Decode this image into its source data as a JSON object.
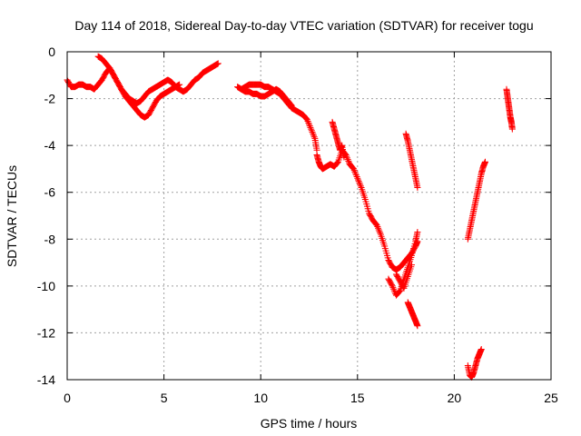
{
  "chart_data": {
    "type": "scatter",
    "title": "Day 114 of 2018, Sidereal Day-to-day VTEC variation (SDTVAR) for receiver togu",
    "xlabel": "GPS time / hours",
    "ylabel": "SDTVAR / TECUs",
    "xlim": [
      0,
      25
    ],
    "ylim": [
      -14,
      0
    ],
    "xticks": [
      "0",
      "5",
      "10",
      "15",
      "20",
      "25"
    ],
    "yticks": [
      "0",
      "-2",
      "-4",
      "-6",
      "-8",
      "-10",
      "-12",
      "-14"
    ],
    "grid": true,
    "marker": "plus",
    "color": "#ff0000",
    "series": [
      {
        "x": [
          0.0,
          0.2,
          0.4,
          0.6,
          0.8,
          1.0,
          1.2,
          1.4,
          1.6,
          1.8,
          2.0,
          2.2,
          2.4,
          2.6,
          2.8,
          3.0,
          3.2,
          3.4,
          3.6,
          3.8,
          4.0,
          4.2,
          4.4,
          4.6,
          4.8,
          5.0,
          5.2,
          5.4,
          5.6,
          5.8
        ],
        "y": [
          -1.2,
          -1.5,
          -1.5,
          -1.4,
          -1.4,
          -1.5,
          -1.5,
          -1.6,
          -1.4,
          -1.2,
          -0.9,
          -0.7,
          -1.0,
          -1.3,
          -1.6,
          -1.9,
          -2.1,
          -2.3,
          -2.5,
          -2.7,
          -2.8,
          -2.7,
          -2.4,
          -2.1,
          -1.9,
          -1.8,
          -1.7,
          -1.6,
          -1.5,
          -1.4
        ]
      },
      {
        "x": [
          1.6,
          1.8,
          2.0,
          2.2,
          2.4,
          2.6,
          2.8,
          3.0,
          3.2,
          3.4,
          3.6,
          3.8,
          4.0,
          4.2,
          4.4,
          4.6,
          4.8,
          5.0,
          5.2,
          5.4,
          5.6,
          5.8,
          6.0,
          6.2,
          6.4,
          6.6,
          6.8,
          7.0,
          7.2,
          7.4,
          7.6,
          7.8
        ],
        "y": [
          -0.2,
          -0.3,
          -0.5,
          -0.7,
          -1.0,
          -1.3,
          -1.6,
          -1.8,
          -2.0,
          -2.1,
          -2.2,
          -2.1,
          -1.9,
          -1.7,
          -1.6,
          -1.5,
          -1.4,
          -1.3,
          -1.2,
          -1.3,
          -1.5,
          -1.6,
          -1.7,
          -1.6,
          -1.4,
          -1.2,
          -1.1,
          -0.9,
          -0.8,
          -0.7,
          -0.6,
          -0.5
        ]
      },
      {
        "x": [
          8.8,
          9.0,
          9.2,
          9.4,
          9.6,
          9.8,
          10.0,
          10.2,
          10.4,
          10.6,
          10.8,
          11.0,
          11.2,
          11.4,
          11.6,
          11.8,
          12.0,
          12.2,
          12.4,
          12.6,
          12.8,
          12.9
        ],
        "y": [
          -1.5,
          -1.6,
          -1.5,
          -1.4,
          -1.4,
          -1.4,
          -1.4,
          -1.5,
          -1.5,
          -1.6,
          -1.7,
          -1.8,
          -2.0,
          -2.2,
          -2.4,
          -2.5,
          -2.6,
          -2.7,
          -2.9,
          -3.3,
          -3.7,
          -4.2
        ]
      },
      {
        "x": [
          9.0,
          9.2,
          9.4,
          9.6,
          9.8,
          10.0,
          10.2,
          10.4,
          10.6,
          10.8,
          11.0,
          11.2,
          11.4,
          11.6
        ],
        "y": [
          -1.6,
          -1.7,
          -1.7,
          -1.8,
          -1.8,
          -1.9,
          -1.9,
          -1.8,
          -1.7,
          -1.6,
          -1.7,
          -1.9,
          -2.1,
          -2.3
        ]
      },
      {
        "x": [
          12.9,
          13.0,
          13.1,
          13.2,
          13.4,
          13.6,
          13.8,
          14.0,
          14.2,
          14.4,
          14.6
        ],
        "y": [
          -4.4,
          -4.7,
          -4.9,
          -5.0,
          -4.9,
          -4.8,
          -4.9,
          -4.7,
          -4.2,
          -4.4,
          -4.8
        ]
      },
      {
        "x": [
          13.7,
          13.8,
          13.9,
          14.0,
          14.1,
          14.2,
          14.3
        ],
        "y": [
          -3.0,
          -3.3,
          -3.6,
          -3.9,
          -4.2,
          -4.0,
          -4.5
        ]
      },
      {
        "x": [
          14.6,
          14.8,
          15.0,
          15.2,
          15.4,
          15.6,
          15.8,
          16.0,
          16.2,
          16.4,
          16.6,
          16.8,
          17.0,
          17.2,
          17.4,
          17.6,
          17.8,
          18.0,
          18.1
        ],
        "y": [
          -4.8,
          -5.0,
          -5.4,
          -5.8,
          -6.3,
          -6.9,
          -7.2,
          -7.4,
          -7.8,
          -8.3,
          -8.9,
          -9.2,
          -9.3,
          -9.2,
          -9.0,
          -8.8,
          -8.6,
          -8.3,
          -8.1
        ]
      },
      {
        "x": [
          16.6,
          16.8,
          17.0,
          17.2,
          17.4,
          17.6,
          17.8,
          18.0,
          18.1
        ],
        "y": [
          -9.7,
          -10.0,
          -10.4,
          -10.2,
          -9.7,
          -9.2,
          -8.7,
          -8.1,
          -7.7
        ]
      },
      {
        "x": [
          17.0,
          17.2,
          17.4,
          17.6,
          17.8
        ],
        "y": [
          -9.5,
          -9.8,
          -10.1,
          -9.6,
          -9.1
        ]
      },
      {
        "x": [
          17.5,
          17.6,
          17.7,
          17.8,
          17.9,
          18.0,
          18.1
        ],
        "y": [
          -3.5,
          -3.8,
          -4.2,
          -4.6,
          -5.0,
          -5.4,
          -5.8
        ]
      },
      {
        "x": [
          17.6,
          17.7,
          17.8,
          17.9,
          18.0,
          18.1
        ],
        "y": [
          -10.7,
          -10.9,
          -11.1,
          -11.3,
          -11.5,
          -11.7
        ]
      },
      {
        "x": [
          20.7,
          20.8,
          20.9,
          21.0,
          21.1,
          21.2,
          21.3,
          21.4,
          21.5,
          21.6
        ],
        "y": [
          -8.0,
          -7.6,
          -7.2,
          -6.8,
          -6.4,
          -6.0,
          -5.6,
          -5.2,
          -4.9,
          -4.7
        ]
      },
      {
        "x": [
          20.7,
          20.8,
          20.9,
          21.0,
          21.1,
          21.2,
          21.3,
          21.4
        ],
        "y": [
          -13.4,
          -13.8,
          -13.9,
          -13.7,
          -13.4,
          -13.1,
          -12.9,
          -12.7
        ]
      },
      {
        "x": [
          22.7,
          22.75,
          22.8,
          22.85,
          22.9,
          22.95,
          23.0
        ],
        "y": [
          -1.6,
          -1.9,
          -2.2,
          -2.5,
          -2.8,
          -3.0,
          -3.3
        ]
      }
    ]
  }
}
